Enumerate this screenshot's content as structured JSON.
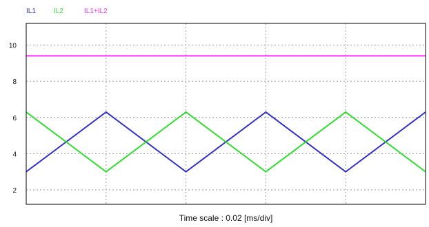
{
  "chart_data": {
    "type": "line",
    "xlabel": "Time scale : 0.02 [ms/div]",
    "ylabel": "",
    "title": "",
    "ylim": [
      1.2,
      11.2
    ],
    "yticks": [
      2,
      4,
      6,
      8,
      10
    ],
    "y_tick_labels": [
      "2",
      "4",
      "6",
      "8",
      "10"
    ],
    "x_divisions": 5,
    "grid": true,
    "legend_position": "top-left",
    "series": [
      {
        "name": "IL1",
        "color": "#3333cc",
        "x": [
          0,
          1,
          2,
          3,
          4,
          5
        ],
        "values": [
          3.0,
          6.3,
          3.0,
          6.3,
          3.0,
          6.3
        ]
      },
      {
        "name": "IL2",
        "color": "#33dd33",
        "x": [
          0,
          1,
          2,
          3,
          4,
          5
        ],
        "values": [
          6.3,
          3.0,
          6.3,
          3.0,
          6.3,
          3.0
        ]
      },
      {
        "name": "IL1+IL2",
        "color": "#ff33ff",
        "x": [
          0,
          5
        ],
        "values": [
          9.4,
          9.4
        ]
      }
    ]
  }
}
